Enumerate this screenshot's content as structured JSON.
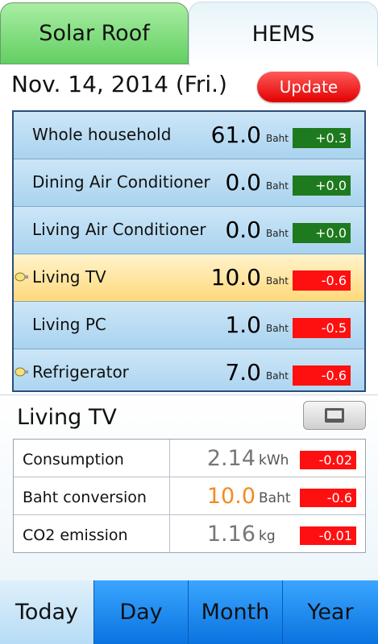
{
  "top_tabs": {
    "solar_roof": "Solar Roof",
    "hems": "HEMS"
  },
  "header": {
    "date": "Nov. 14, 2014 (Fri.)",
    "update_label": "Update"
  },
  "appliances": [
    {
      "label": "Whole household",
      "value": "61.0",
      "unit": "Baht",
      "diff": "+0.3",
      "diff_color": "#1e7a1e",
      "icon": ""
    },
    {
      "label": "Dining Air Conditioner",
      "value": "0.0",
      "unit": "Baht",
      "diff": "+0.0",
      "diff_color": "#1e7a1e",
      "icon": ""
    },
    {
      "label": "Living Air Conditioner",
      "value": "0.0",
      "unit": "Baht",
      "diff": "+0.0",
      "diff_color": "#1e7a1e",
      "icon": ""
    },
    {
      "label": "Living TV",
      "value": "10.0",
      "unit": "Baht",
      "diff": "-0.6",
      "diff_color": "#ff1010",
      "icon": "bulb-icon"
    },
    {
      "label": "Living PC",
      "value": "1.0",
      "unit": "Baht",
      "diff": "-0.5",
      "diff_color": "#ff1010",
      "icon": ""
    },
    {
      "label": "Refrigerator",
      "value": "7.0",
      "unit": "Baht",
      "diff": "-0.6",
      "diff_color": "#ff1010",
      "icon": "bulb-icon"
    }
  ],
  "detail": {
    "title": "Living TV",
    "rows": [
      {
        "label": "Consumption",
        "value": "2.14",
        "unit": "kWh",
        "diff": "-0.02"
      },
      {
        "label": "Baht conversion",
        "value": "10.0",
        "unit": "Baht",
        "diff": "-0.6"
      },
      {
        "label": "CO2 emission",
        "value": "1.16",
        "unit": "kg",
        "diff": "-0.01"
      }
    ]
  },
  "bottom_tabs": {
    "today": "Today",
    "day": "Day",
    "month": "Month",
    "year": "Year"
  },
  "colors": {
    "positive": "#1e7a1e",
    "negative": "#ff1010",
    "highlight": "#f58a1f",
    "accent": "#0a73e0"
  }
}
